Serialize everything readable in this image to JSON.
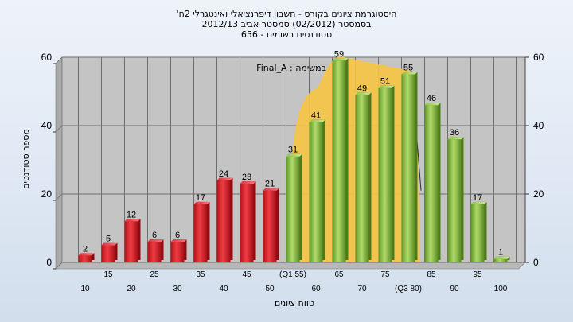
{
  "chart_data": {
    "type": "bar",
    "title_lines": [
      "'היסטוגרמת ציונים בקורס - חשבון דיפרנציאלי ואינטגרלי 2ח",
      "בסמסטר  (02/2012)  סמסטר אביב 2012/13",
      "סטודנטים רשומים - 656"
    ],
    "ylabel": "מספר סטודנטים",
    "xlabel": "טווח ציונים",
    "annotation": "Final_A : במשימה",
    "ylim": [
      0,
      60
    ],
    "y_ticks": [
      "0",
      "20",
      "40",
      "60"
    ],
    "categories": [
      "10",
      "15",
      "20",
      "25",
      "30",
      "35",
      "40",
      "45",
      "50",
      "(Q1 55)",
      "60",
      "65",
      "70",
      "75",
      "(Q3 80)",
      "85",
      "90",
      "95",
      "100"
    ],
    "values": [
      2,
      5,
      12,
      6,
      6,
      17,
      24,
      23,
      21,
      31,
      41,
      59,
      49,
      51,
      55,
      46,
      36,
      17,
      1
    ],
    "value_labels": [
      "2",
      "5",
      "12",
      "6",
      "6",
      "17",
      "24",
      "23",
      "21",
      "31",
      "41",
      "59",
      "49",
      "51",
      "55",
      "46",
      "36",
      "17",
      "1"
    ],
    "bar_colors": [
      "red",
      "red",
      "red",
      "red",
      "red",
      "red",
      "red",
      "red",
      "red",
      "green",
      "green",
      "green",
      "green",
      "green",
      "green",
      "green",
      "green",
      "green",
      "green"
    ],
    "colors": {
      "red_bar": "#e2202a",
      "green_bar": "#8cc43c",
      "iqr_area": "#f6c544",
      "plot_background": "#c4c4c4",
      "grid": "#6e6e6e"
    },
    "grid": true
  }
}
